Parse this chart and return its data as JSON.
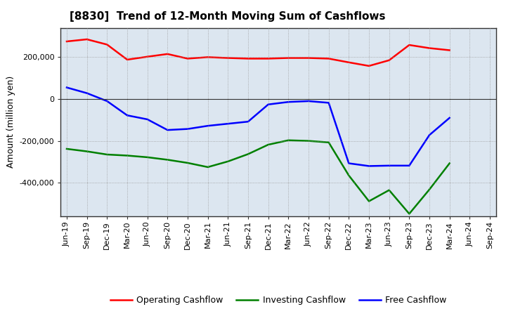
{
  "title": "[8830]  Trend of 12-Month Moving Sum of Cashflows",
  "ylabel": "Amount (million yen)",
  "background_color": "#ffffff",
  "plot_bg_color": "#dce6f0",
  "grid_color": "#999999",
  "x_labels": [
    "Jun-19",
    "Sep-19",
    "Dec-19",
    "Mar-20",
    "Jun-20",
    "Sep-20",
    "Dec-20",
    "Mar-21",
    "Jun-21",
    "Sep-21",
    "Dec-21",
    "Mar-22",
    "Jun-22",
    "Sep-22",
    "Dec-22",
    "Mar-23",
    "Jun-23",
    "Sep-23",
    "Dec-23",
    "Mar-24",
    "Jun-24",
    "Sep-24"
  ],
  "operating": [
    275000,
    285000,
    260000,
    188000,
    202000,
    215000,
    193000,
    200000,
    196000,
    193000,
    193000,
    196000,
    196000,
    193000,
    175000,
    158000,
    185000,
    258000,
    243000,
    233000,
    null,
    null
  ],
  "investing": [
    -238000,
    -250000,
    -265000,
    -270000,
    -278000,
    -290000,
    -305000,
    -325000,
    -298000,
    -263000,
    -218000,
    -197000,
    -200000,
    -207000,
    -365000,
    -488000,
    -435000,
    -548000,
    -432000,
    -307000,
    null,
    null
  ],
  "free": [
    55000,
    28000,
    -10000,
    -78000,
    -97000,
    -148000,
    -143000,
    -128000,
    -118000,
    -108000,
    -26000,
    -14000,
    -10000,
    -18000,
    -307000,
    -320000,
    -318000,
    -318000,
    -172000,
    -90000,
    null,
    null
  ],
  "operating_color": "#ff0000",
  "investing_color": "#008000",
  "free_color": "#0000ff",
  "ylim": [
    -560000,
    340000
  ],
  "yticks": [
    -400000,
    -200000,
    0,
    200000
  ],
  "line_width": 1.8,
  "legend_labels": [
    "Operating Cashflow",
    "Investing Cashflow",
    "Free Cashflow"
  ]
}
